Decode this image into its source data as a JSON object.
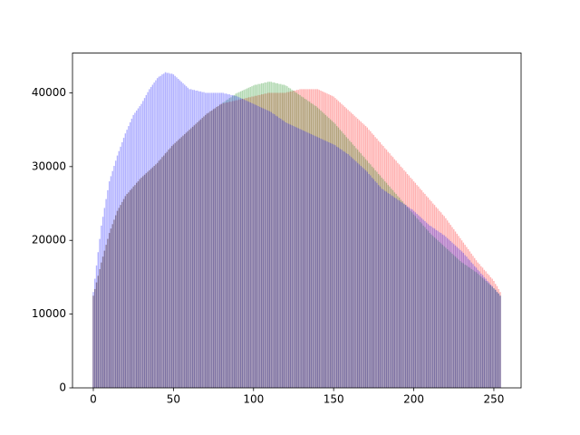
{
  "chart_data": {
    "type": "bar",
    "x": [
      0,
      1,
      2,
      3,
      4,
      5,
      6,
      7,
      8,
      9,
      10,
      11,
      12,
      13,
      14,
      15,
      16,
      17,
      18,
      19,
      20,
      21,
      22,
      23,
      24,
      25,
      26,
      27,
      28,
      29,
      30,
      31,
      32,
      33,
      34,
      35,
      36,
      37,
      38,
      39,
      40,
      41,
      42,
      43,
      44,
      45,
      46,
      47,
      48,
      49,
      50,
      51,
      52,
      53,
      54,
      55,
      56,
      57,
      58,
      59,
      60,
      61,
      62,
      63,
      64,
      65,
      66,
      67,
      68,
      69,
      70,
      71,
      72,
      73,
      74,
      75,
      76,
      77,
      78,
      79,
      80,
      81,
      82,
      83,
      84,
      85,
      86,
      87,
      88,
      89,
      90,
      91,
      92,
      93,
      94,
      95,
      96,
      97,
      98,
      99,
      100,
      101,
      102,
      103,
      104,
      105,
      106,
      107,
      108,
      109,
      110,
      111,
      112,
      113,
      114,
      115,
      116,
      117,
      118,
      119,
      120,
      121,
      122,
      123,
      124,
      125,
      126,
      127,
      128,
      129,
      130,
      131,
      132,
      133,
      134,
      135,
      136,
      137,
      138,
      139,
      140,
      141,
      142,
      143,
      144,
      145,
      146,
      147,
      148,
      149,
      150,
      151,
      152,
      153,
      154,
      155,
      156,
      157,
      158,
      159,
      160,
      161,
      162,
      163,
      164,
      165,
      166,
      167,
      168,
      169,
      170,
      171,
      172,
      173,
      174,
      175,
      176,
      177,
      178,
      179,
      180,
      181,
      182,
      183,
      184,
      185,
      186,
      187,
      188,
      189,
      190,
      191,
      192,
      193,
      194,
      195,
      196,
      197,
      198,
      199,
      200,
      201,
      202,
      203,
      204,
      205,
      206,
      207,
      208,
      209,
      210,
      211,
      212,
      213,
      214,
      215,
      216,
      217,
      218,
      219,
      220,
      221,
      222,
      223,
      224,
      225,
      226,
      227,
      228,
      229,
      230,
      231,
      232,
      233,
      234,
      235,
      236,
      237,
      238,
      239,
      240,
      241,
      242,
      243,
      244,
      245,
      246,
      247,
      248,
      249,
      250,
      251,
      252,
      253,
      254
    ],
    "series": [
      {
        "color": "red",
        "values": [
          12500,
          13400,
          14300,
          15200,
          16100,
          17000,
          17800,
          18600,
          19400,
          20200,
          21000,
          21600,
          22200,
          22800,
          23400,
          24000,
          24400,
          24800,
          25200,
          25600,
          26000,
          26300,
          26500,
          26800,
          27000,
          27300,
          27500,
          27800,
          28000,
          28300,
          28500,
          28700,
          28900,
          29100,
          29300,
          29500,
          29700,
          29900,
          30100,
          30300,
          30500,
          30800,
          31000,
          31300,
          31500,
          31800,
          32000,
          32300,
          32500,
          32800,
          33000,
          33200,
          33400,
          33600,
          33800,
          34000,
          34200,
          34400,
          34600,
          34800,
          35000,
          35200,
          35400,
          35600,
          35800,
          36000,
          36200,
          36400,
          36600,
          36800,
          37000,
          37200,
          37300,
          37500,
          37600,
          37800,
          37900,
          38100,
          38200,
          38400,
          38500,
          38600,
          38600,
          38700,
          38700,
          38800,
          38800,
          38900,
          38900,
          39000,
          39000,
          39100,
          39100,
          39200,
          39200,
          39300,
          39300,
          39400,
          39400,
          39500,
          39500,
          39600,
          39600,
          39700,
          39700,
          39800,
          39800,
          39900,
          39900,
          40000,
          40000,
          40000,
          40000,
          40000,
          40000,
          40000,
          40000,
          40000,
          40000,
          40000,
          40000,
          40100,
          40100,
          40200,
          40200,
          40300,
          40300,
          40400,
          40400,
          40500,
          40500,
          40500,
          40500,
          40500,
          40500,
          40500,
          40500,
          40500,
          40500,
          40500,
          40500,
          40400,
          40300,
          40200,
          40100,
          40000,
          39900,
          39800,
          39700,
          39600,
          39500,
          39300,
          39100,
          38900,
          38700,
          38500,
          38300,
          38100,
          37900,
          37700,
          37500,
          37300,
          37100,
          36900,
          36700,
          36500,
          36300,
          36100,
          35900,
          35700,
          35500,
          35300,
          35000,
          34800,
          34500,
          34300,
          34000,
          33800,
          33500,
          33300,
          33000,
          32800,
          32500,
          32300,
          32000,
          31800,
          31500,
          31300,
          31000,
          30800,
          30500,
          30300,
          30000,
          29800,
          29500,
          29300,
          29000,
          28800,
          28500,
          28300,
          28000,
          27800,
          27500,
          27300,
          27000,
          26800,
          26500,
          26300,
          26000,
          25800,
          25500,
          25300,
          25000,
          24800,
          24500,
          24300,
          24000,
          23800,
          23500,
          23300,
          23000,
          22700,
          22400,
          22100,
          21800,
          21500,
          21200,
          20900,
          20600,
          20300,
          20000,
          19700,
          19400,
          19100,
          18800,
          18500,
          18200,
          17900,
          17600,
          17300,
          17000,
          16800,
          16500,
          16300,
          16000,
          15800,
          15500,
          15300,
          15000,
          14800,
          14500,
          14100,
          13800,
          13400,
          13000
        ]
      },
      {
        "color": "green",
        "values": [
          12500,
          13400,
          14300,
          15200,
          16100,
          17000,
          17800,
          18600,
          19400,
          20200,
          21000,
          21600,
          22200,
          22800,
          23400,
          24000,
          24400,
          24800,
          25200,
          25600,
          26000,
          26300,
          26500,
          26800,
          27000,
          27300,
          27500,
          27800,
          28000,
          28300,
          28500,
          28700,
          28900,
          29100,
          29300,
          29500,
          29700,
          29900,
          30100,
          30300,
          30500,
          30800,
          31000,
          31300,
          31500,
          31800,
          32000,
          32300,
          32500,
          32800,
          33000,
          33200,
          33400,
          33600,
          33800,
          34000,
          34200,
          34400,
          34600,
          34800,
          35000,
          35200,
          35400,
          35600,
          35800,
          36000,
          36200,
          36400,
          36600,
          36800,
          37000,
          37200,
          37300,
          37500,
          37600,
          37800,
          37900,
          38100,
          38200,
          38400,
          38500,
          38700,
          38800,
          39000,
          39100,
          39300,
          39400,
          39600,
          39700,
          39900,
          40000,
          40100,
          40200,
          40300,
          40400,
          40500,
          40600,
          40700,
          40800,
          40900,
          41000,
          41100,
          41100,
          41200,
          41200,
          41300,
          41300,
          41400,
          41400,
          41500,
          41500,
          41500,
          41400,
          41400,
          41300,
          41300,
          41200,
          41200,
          41100,
          41100,
          41000,
          40900,
          40700,
          40600,
          40400,
          40300,
          40100,
          40000,
          39800,
          39700,
          39500,
          39400,
          39200,
          39100,
          38900,
          38800,
          38600,
          38500,
          38300,
          38200,
          38000,
          37800,
          37600,
          37400,
          37200,
          37000,
          36800,
          36600,
          36400,
          36200,
          36000,
          35800,
          35500,
          35300,
          35000,
          34800,
          34500,
          34300,
          34000,
          33800,
          33500,
          33300,
          33000,
          32800,
          32500,
          32300,
          32000,
          31800,
          31500,
          31300,
          31000,
          30800,
          30500,
          30300,
          30000,
          29800,
          29500,
          29300,
          29000,
          28800,
          28500,
          28300,
          28000,
          27800,
          27500,
          27300,
          27000,
          26800,
          26500,
          26300,
          26000,
          25800,
          25500,
          25300,
          25000,
          24800,
          24500,
          24300,
          24000,
          23800,
          23500,
          23300,
          23000,
          22800,
          22500,
          22300,
          22000,
          21800,
          21500,
          21300,
          21000,
          20800,
          20600,
          20400,
          20200,
          20000,
          19800,
          19600,
          19400,
          19200,
          19000,
          18800,
          18600,
          18400,
          18200,
          18000,
          17800,
          17600,
          17400,
          17200,
          17000,
          16900,
          16700,
          16600,
          16400,
          16300,
          16100,
          16000,
          15800,
          15700,
          15500,
          15300,
          15100,
          14900,
          14700,
          14500,
          14300,
          14100,
          13900,
          13700,
          13500,
          13300,
          13000,
          12800,
          12500
        ]
      },
      {
        "color": "blue",
        "values": [
          13000,
          14800,
          16600,
          18400,
          20200,
          22000,
          23200,
          24400,
          25600,
          26800,
          28000,
          28700,
          29400,
          30100,
          30800,
          31500,
          32100,
          32700,
          33300,
          33900,
          34500,
          35000,
          35500,
          36000,
          36500,
          37000,
          37300,
          37600,
          37900,
          38200,
          38500,
          38900,
          39300,
          39700,
          40100,
          40500,
          40800,
          41100,
          41400,
          41700,
          42000,
          42200,
          42300,
          42500,
          42600,
          42800,
          42700,
          42700,
          42600,
          42600,
          42500,
          42300,
          42100,
          41900,
          41700,
          41500,
          41300,
          41100,
          40900,
          40700,
          40500,
          40500,
          40400,
          40400,
          40300,
          40300,
          40200,
          40200,
          40100,
          40100,
          40000,
          40000,
          40000,
          40000,
          40000,
          40000,
          40000,
          40000,
          40000,
          40000,
          40000,
          40000,
          39900,
          39900,
          39800,
          39800,
          39700,
          39700,
          39600,
          39600,
          39500,
          39400,
          39300,
          39200,
          39100,
          39000,
          38900,
          38800,
          38700,
          38600,
          38500,
          38400,
          38300,
          38200,
          38100,
          38000,
          37900,
          37800,
          37700,
          37600,
          37500,
          37400,
          37200,
          37100,
          36900,
          36800,
          36600,
          36500,
          36300,
          36200,
          36000,
          35900,
          35800,
          35700,
          35600,
          35500,
          35400,
          35300,
          35200,
          35100,
          35000,
          34900,
          34800,
          34700,
          34600,
          34500,
          34400,
          34300,
          34200,
          34100,
          34000,
          33900,
          33800,
          33700,
          33600,
          33500,
          33400,
          33300,
          33200,
          33100,
          33000,
          32900,
          32700,
          32600,
          32400,
          32300,
          32100,
          32000,
          31800,
          31700,
          31500,
          31300,
          31100,
          30900,
          30700,
          30500,
          30300,
          30100,
          29900,
          29700,
          29500,
          29300,
          29000,
          28800,
          28500,
          28300,
          28000,
          27800,
          27500,
          27300,
          27000,
          26900,
          26700,
          26600,
          26400,
          26300,
          26100,
          26000,
          25800,
          25700,
          25500,
          25400,
          25200,
          25100,
          24900,
          24800,
          24600,
          24500,
          24300,
          24200,
          24000,
          23800,
          23600,
          23400,
          23200,
          23000,
          22800,
          22600,
          22400,
          22200,
          22000,
          21900,
          21700,
          21600,
          21400,
          21300,
          21100,
          21000,
          20800,
          20700,
          20500,
          20300,
          20100,
          19900,
          19700,
          19500,
          19300,
          19100,
          18900,
          18700,
          18500,
          18300,
          18000,
          17800,
          17500,
          17300,
          17000,
          16800,
          16500,
          16300,
          16000,
          15800,
          15500,
          15300,
          15000,
          14800,
          14500,
          14300,
          14000,
          13800,
          13500,
          13300,
          13000,
          12800,
          12500
        ]
      }
    ],
    "alpha": 0.3,
    "xlim": [
      -13,
      267
    ],
    "xticks": [
      0,
      50,
      100,
      150,
      200,
      250
    ],
    "ylim": [
      0,
      45400
    ],
    "yticks": [
      0,
      10000,
      20000,
      30000,
      40000
    ],
    "grid": false
  }
}
